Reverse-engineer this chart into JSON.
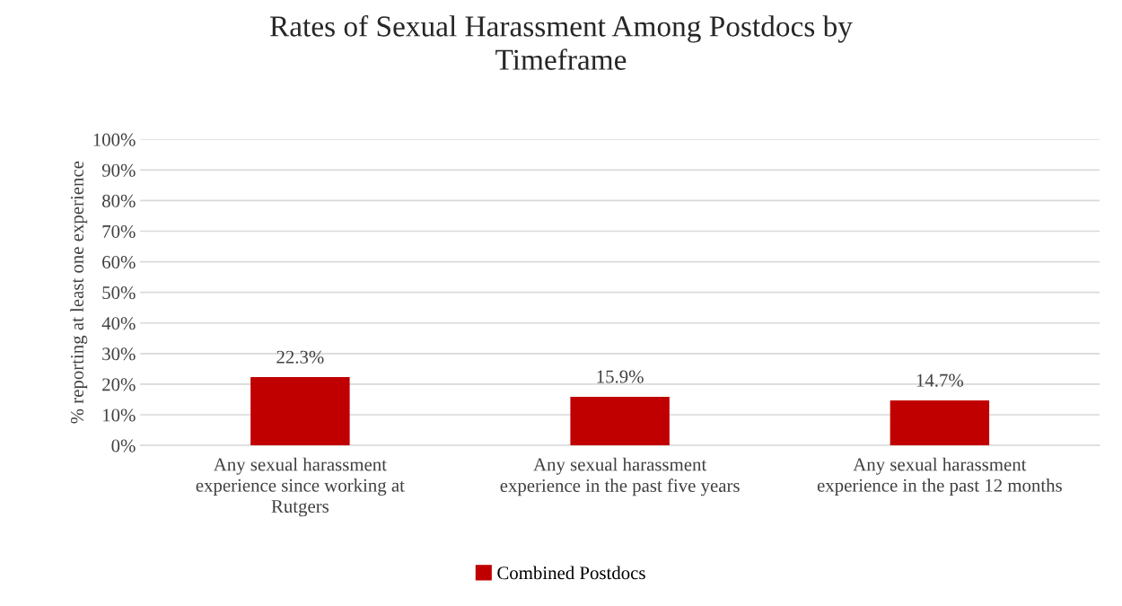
{
  "chart_data": {
    "type": "bar",
    "title": "Rates of Sexual Harassment Among Postdocs by\nTimeframe",
    "ylabel": "% reporting at least one experience",
    "categories": [
      "Any sexual harassment\nexperience since working at\nRutgers",
      "Any sexual harassment\nexperience in the past five years",
      "Any sexual harassment\nexperience in the past 12 months"
    ],
    "series": [
      {
        "name": "Combined Postdocs",
        "color": "#c00000",
        "values": [
          22.3,
          15.9,
          14.7
        ],
        "value_labels": [
          "22.3%",
          "15.9%",
          "14.7%"
        ]
      }
    ],
    "ylim": [
      0,
      100
    ],
    "yticks": [
      {
        "value": 0,
        "label": "0%"
      },
      {
        "value": 10,
        "label": "10%"
      },
      {
        "value": 20,
        "label": "20%"
      },
      {
        "value": 30,
        "label": "30%"
      },
      {
        "value": 40,
        "label": "40%"
      },
      {
        "value": 50,
        "label": "50%"
      },
      {
        "value": 60,
        "label": "60%"
      },
      {
        "value": 70,
        "label": "70%"
      },
      {
        "value": 80,
        "label": "80%"
      },
      {
        "value": 90,
        "label": "90%"
      },
      {
        "value": 100,
        "label": "100%"
      }
    ],
    "grid": "y",
    "legend": "bottom"
  }
}
